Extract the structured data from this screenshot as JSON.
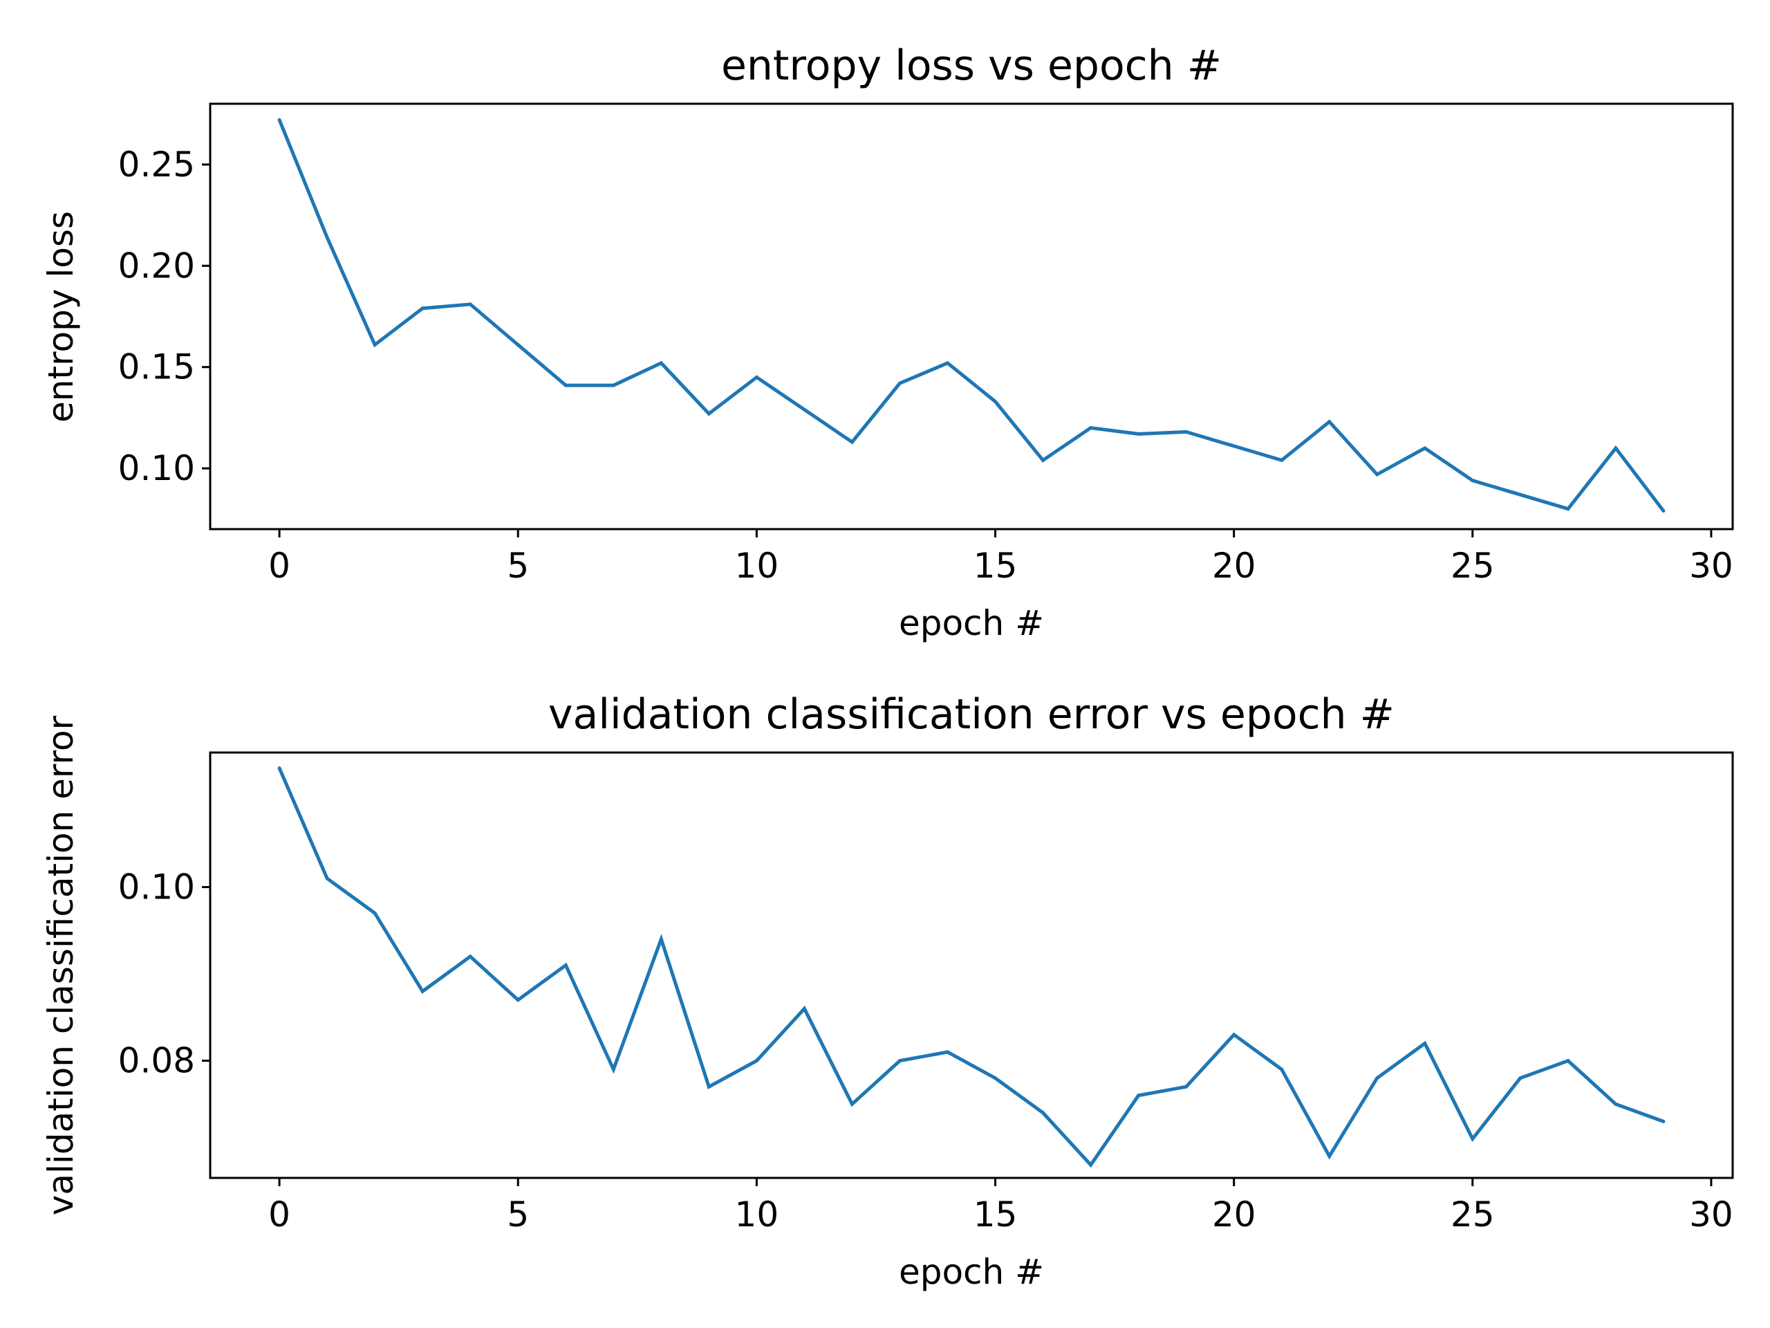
{
  "chart_data": [
    {
      "type": "line",
      "title": "entropy loss vs epoch #",
      "xlabel": "epoch #",
      "ylabel": "entropy loss",
      "xlim": [
        -1.45,
        30.45
      ],
      "ylim": [
        0.07,
        0.28
      ],
      "xticks": [
        0,
        5,
        10,
        15,
        20,
        25,
        30
      ],
      "yticks": [
        0.1,
        0.15,
        0.2,
        0.25
      ],
      "ytick_format": 2,
      "grid": false,
      "color": "#1f77b4",
      "x": [
        0,
        1,
        2,
        3,
        4,
        5,
        6,
        7,
        8,
        9,
        10,
        11,
        12,
        13,
        14,
        15,
        16,
        17,
        18,
        19,
        20,
        21,
        22,
        23,
        24,
        25,
        26,
        27,
        28,
        29
      ],
      "series": [
        {
          "values": [
            0.272,
            0.214,
            0.161,
            0.179,
            0.181,
            0.161,
            0.141,
            0.141,
            0.152,
            0.127,
            0.145,
            0.129,
            0.113,
            0.142,
            0.152,
            0.133,
            0.104,
            0.12,
            0.117,
            0.118,
            0.111,
            0.104,
            0.123,
            0.097,
            0.11,
            0.094,
            0.087,
            0.08,
            0.11,
            0.079
          ]
        }
      ]
    },
    {
      "type": "line",
      "title": "validation classification error vs epoch #",
      "xlabel": "epoch #",
      "ylabel": "validation classification error",
      "xlim": [
        -1.45,
        30.45
      ],
      "ylim": [
        0.0665,
        0.1155
      ],
      "xticks": [
        0,
        5,
        10,
        15,
        20,
        25,
        30
      ],
      "yticks": [
        0.08,
        0.1
      ],
      "ytick_format": 2,
      "grid": false,
      "color": "#1f77b4",
      "x": [
        0,
        1,
        2,
        3,
        4,
        5,
        6,
        7,
        8,
        9,
        10,
        11,
        12,
        13,
        14,
        15,
        16,
        17,
        18,
        19,
        20,
        21,
        22,
        23,
        24,
        25,
        26,
        27,
        28,
        29
      ],
      "series": [
        {
          "values": [
            0.1137,
            0.101,
            0.097,
            0.088,
            0.092,
            0.087,
            0.091,
            0.079,
            0.094,
            0.077,
            0.08,
            0.086,
            0.075,
            0.08,
            0.081,
            0.078,
            0.074,
            0.068,
            0.076,
            0.077,
            0.083,
            0.079,
            0.069,
            0.078,
            0.082,
            0.071,
            0.078,
            0.08,
            0.075,
            0.073
          ]
        }
      ]
    }
  ]
}
